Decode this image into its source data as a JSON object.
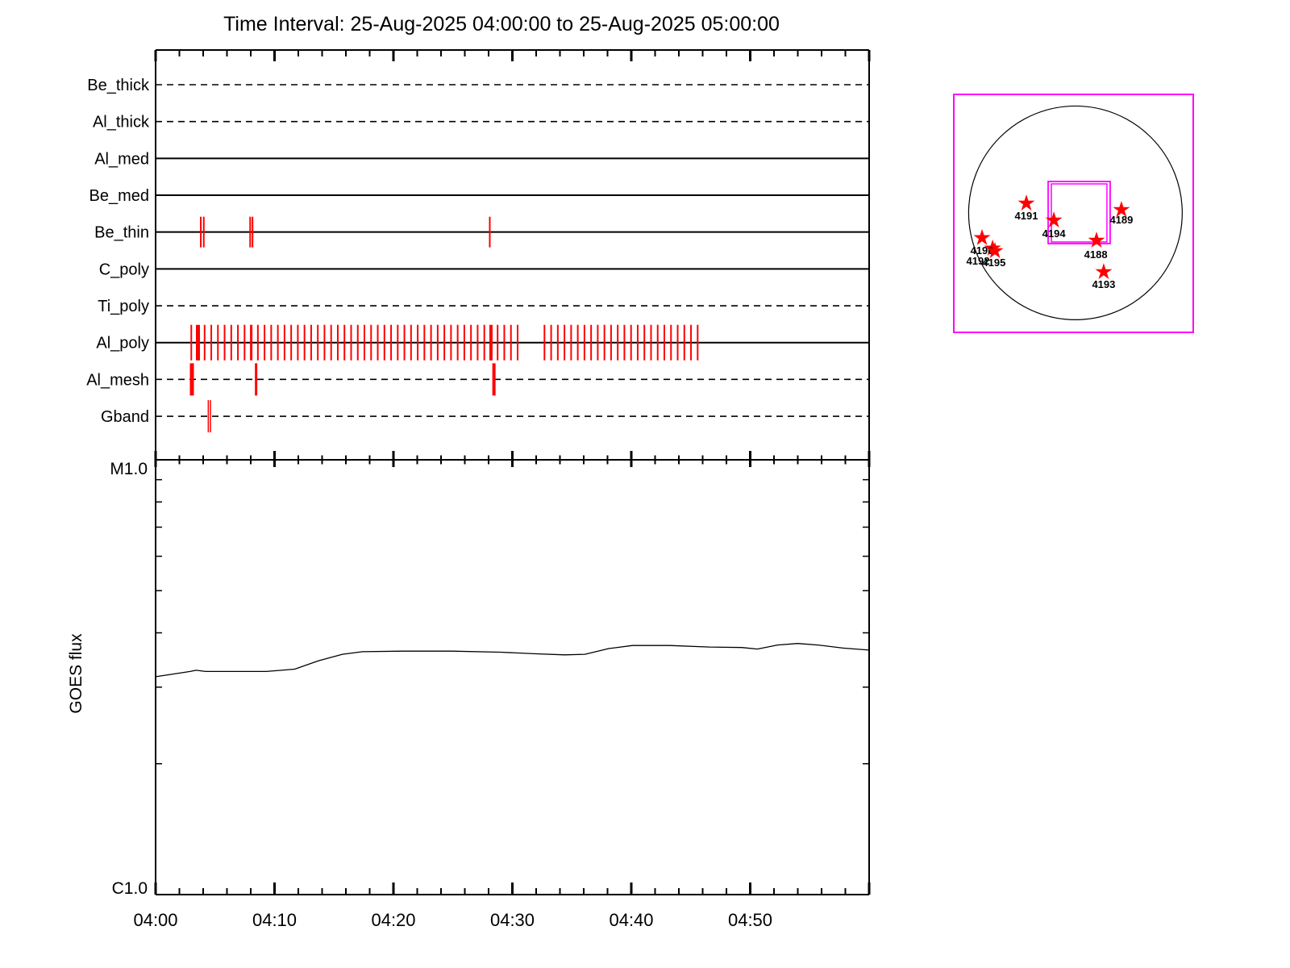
{
  "title": "Time Interval: 25-Aug-2025 04:00:00 to 25-Aug-2025 05:00:00",
  "colors": {
    "exposure_red": "#ff0000",
    "fov_magenta": "#ff00ff",
    "axis_black": "#000000",
    "background": "#ffffff"
  },
  "chart_data": [
    {
      "type": "table",
      "name": "xrt-filter-exposure-timeline",
      "x_axis": {
        "start": "04:00",
        "end": "05:00",
        "minor_tick_minutes": 2,
        "major_tick_minutes": 10
      },
      "rows": [
        {
          "label": "Be_thick",
          "line_style": "dashed",
          "tick_width": 2,
          "ticks": [],
          "wide_ticks": []
        },
        {
          "label": "Al_thick",
          "line_style": "dashed",
          "tick_width": 2,
          "ticks": [],
          "wide_ticks": []
        },
        {
          "label": "Al_med",
          "line_style": "solid",
          "tick_width": 2,
          "ticks": [],
          "wide_ticks": []
        },
        {
          "label": "Be_med",
          "line_style": "solid",
          "tick_width": 2,
          "ticks": [],
          "wide_ticks": []
        },
        {
          "label": "Be_thin",
          "line_style": "solid",
          "tick_width": 2,
          "ticks": [
            3.8,
            4.05,
            7.95,
            8.15,
            28.1
          ],
          "wide_ticks": []
        },
        {
          "label": "C_poly",
          "line_style": "solid",
          "tick_width": 2,
          "ticks": [],
          "wide_ticks": []
        },
        {
          "label": "Ti_poly",
          "line_style": "dashed",
          "tick_width": 2,
          "ticks": [],
          "wide_ticks": []
        },
        {
          "label": "Al_poly",
          "line_style": "solid",
          "tick_width": 2,
          "ticks": [
            3.0,
            4.12,
            4.68,
            5.24,
            5.8,
            6.36,
            6.92,
            7.48,
            8.6,
            9.16,
            9.72,
            10.28,
            10.84,
            11.4,
            11.96,
            12.52,
            13.08,
            13.64,
            14.2,
            14.76,
            15.32,
            15.88,
            16.44,
            17.0,
            17.56,
            18.12,
            18.68,
            19.24,
            19.8,
            20.36,
            20.92,
            21.48,
            22.04,
            22.6,
            23.16,
            23.72,
            24.28,
            24.84,
            25.4,
            25.96,
            26.52,
            27.08,
            27.64,
            28.76,
            29.32,
            29.88,
            30.44,
            32.7,
            33.26,
            33.82,
            34.38,
            34.94,
            35.5,
            36.06,
            36.62,
            37.18,
            37.74,
            38.3,
            38.86,
            39.42,
            39.98,
            40.54,
            41.1,
            41.66,
            42.22,
            42.78,
            43.34,
            43.9,
            44.46,
            45.02,
            45.58
          ],
          "wide_ticks": [
            {
              "t": 3.56,
              "w": 5
            },
            {
              "t": 8.04,
              "w": 3
            },
            {
              "t": 28.2,
              "w": 4
            }
          ]
        },
        {
          "label": "Al_mesh",
          "line_style": "dashed",
          "tick_width": 3,
          "ticks": [
            8.45
          ],
          "wide_ticks": [
            {
              "t": 3.05,
              "w": 5
            },
            {
              "t": 28.45,
              "w": 4
            }
          ]
        },
        {
          "label": "Gband",
          "line_style": "dashed",
          "tick_width": 1.5,
          "ticks": [
            4.43,
            4.61
          ],
          "wide_ticks": []
        }
      ]
    },
    {
      "type": "line",
      "name": "goes-flux-plot",
      "ylabel": "GOES flux",
      "y_scale": "log",
      "y_top_label": "M1.0",
      "y_bottom_label": "C1.0",
      "x_tick_labels": [
        "04:00",
        "04:10",
        "04:20",
        "04:30",
        "04:40",
        "04:50"
      ],
      "series": [
        {
          "name": "GOES flux",
          "units": "C-class (C1.0 = bottom, M1.0 = top, log scale)",
          "points": [
            [
              0,
              3.17
            ],
            [
              1.3,
              3.21
            ],
            [
              2.9,
              3.26
            ],
            [
              3.4,
              3.28
            ],
            [
              4.2,
              3.26
            ],
            [
              9.3,
              3.26
            ],
            [
              10.6,
              3.28
            ],
            [
              11.7,
              3.3
            ],
            [
              13.7,
              3.45
            ],
            [
              15.7,
              3.57
            ],
            [
              17.4,
              3.62
            ],
            [
              20.8,
              3.63
            ],
            [
              24.9,
              3.63
            ],
            [
              29,
              3.61
            ],
            [
              32,
              3.58
            ],
            [
              34.4,
              3.56
            ],
            [
              36.1,
              3.57
            ],
            [
              38.1,
              3.68
            ],
            [
              40.1,
              3.74
            ],
            [
              43.2,
              3.74
            ],
            [
              46.6,
              3.71
            ],
            [
              49.3,
              3.7
            ],
            [
              50.6,
              3.67
            ],
            [
              52.3,
              3.75
            ],
            [
              54,
              3.78
            ],
            [
              55.7,
              3.75
            ],
            [
              57.8,
              3.69
            ],
            [
              60,
              3.65
            ]
          ]
        }
      ]
    },
    {
      "type": "scatter",
      "name": "solar-disk-active-region-map",
      "disk": {
        "cx": 0.508,
        "cy": 0.498,
        "r": 0.446
      },
      "fov_box": {
        "x": 0.394,
        "y": 0.366,
        "w": 0.259,
        "h": 0.261
      },
      "regions": [
        {
          "noaa": "4192",
          "star": [
            0.162,
            0.647
          ],
          "label": [
            0.101,
            0.698
          ]
        },
        {
          "noaa": "4196",
          "star": [
            0.118,
            0.603
          ],
          "label": [
            0.118,
            0.654
          ]
        },
        {
          "noaa": "4195",
          "star": [
            0.172,
            0.658
          ],
          "label": [
            0.168,
            0.705
          ]
        },
        {
          "noaa": "4191",
          "star": [
            0.303,
            0.458
          ],
          "label": [
            0.303,
            0.508
          ]
        },
        {
          "noaa": "4194",
          "star": [
            0.418,
            0.529
          ],
          "label": [
            0.418,
            0.583
          ]
        },
        {
          "noaa": "4189",
          "star": [
            0.7,
            0.485
          ],
          "label": [
            0.7,
            0.525
          ]
        },
        {
          "noaa": "4188",
          "star": [
            0.596,
            0.614
          ],
          "label": [
            0.593,
            0.671
          ]
        },
        {
          "noaa": "4193",
          "star": [
            0.626,
            0.746
          ],
          "label": [
            0.626,
            0.797
          ]
        }
      ]
    }
  ]
}
